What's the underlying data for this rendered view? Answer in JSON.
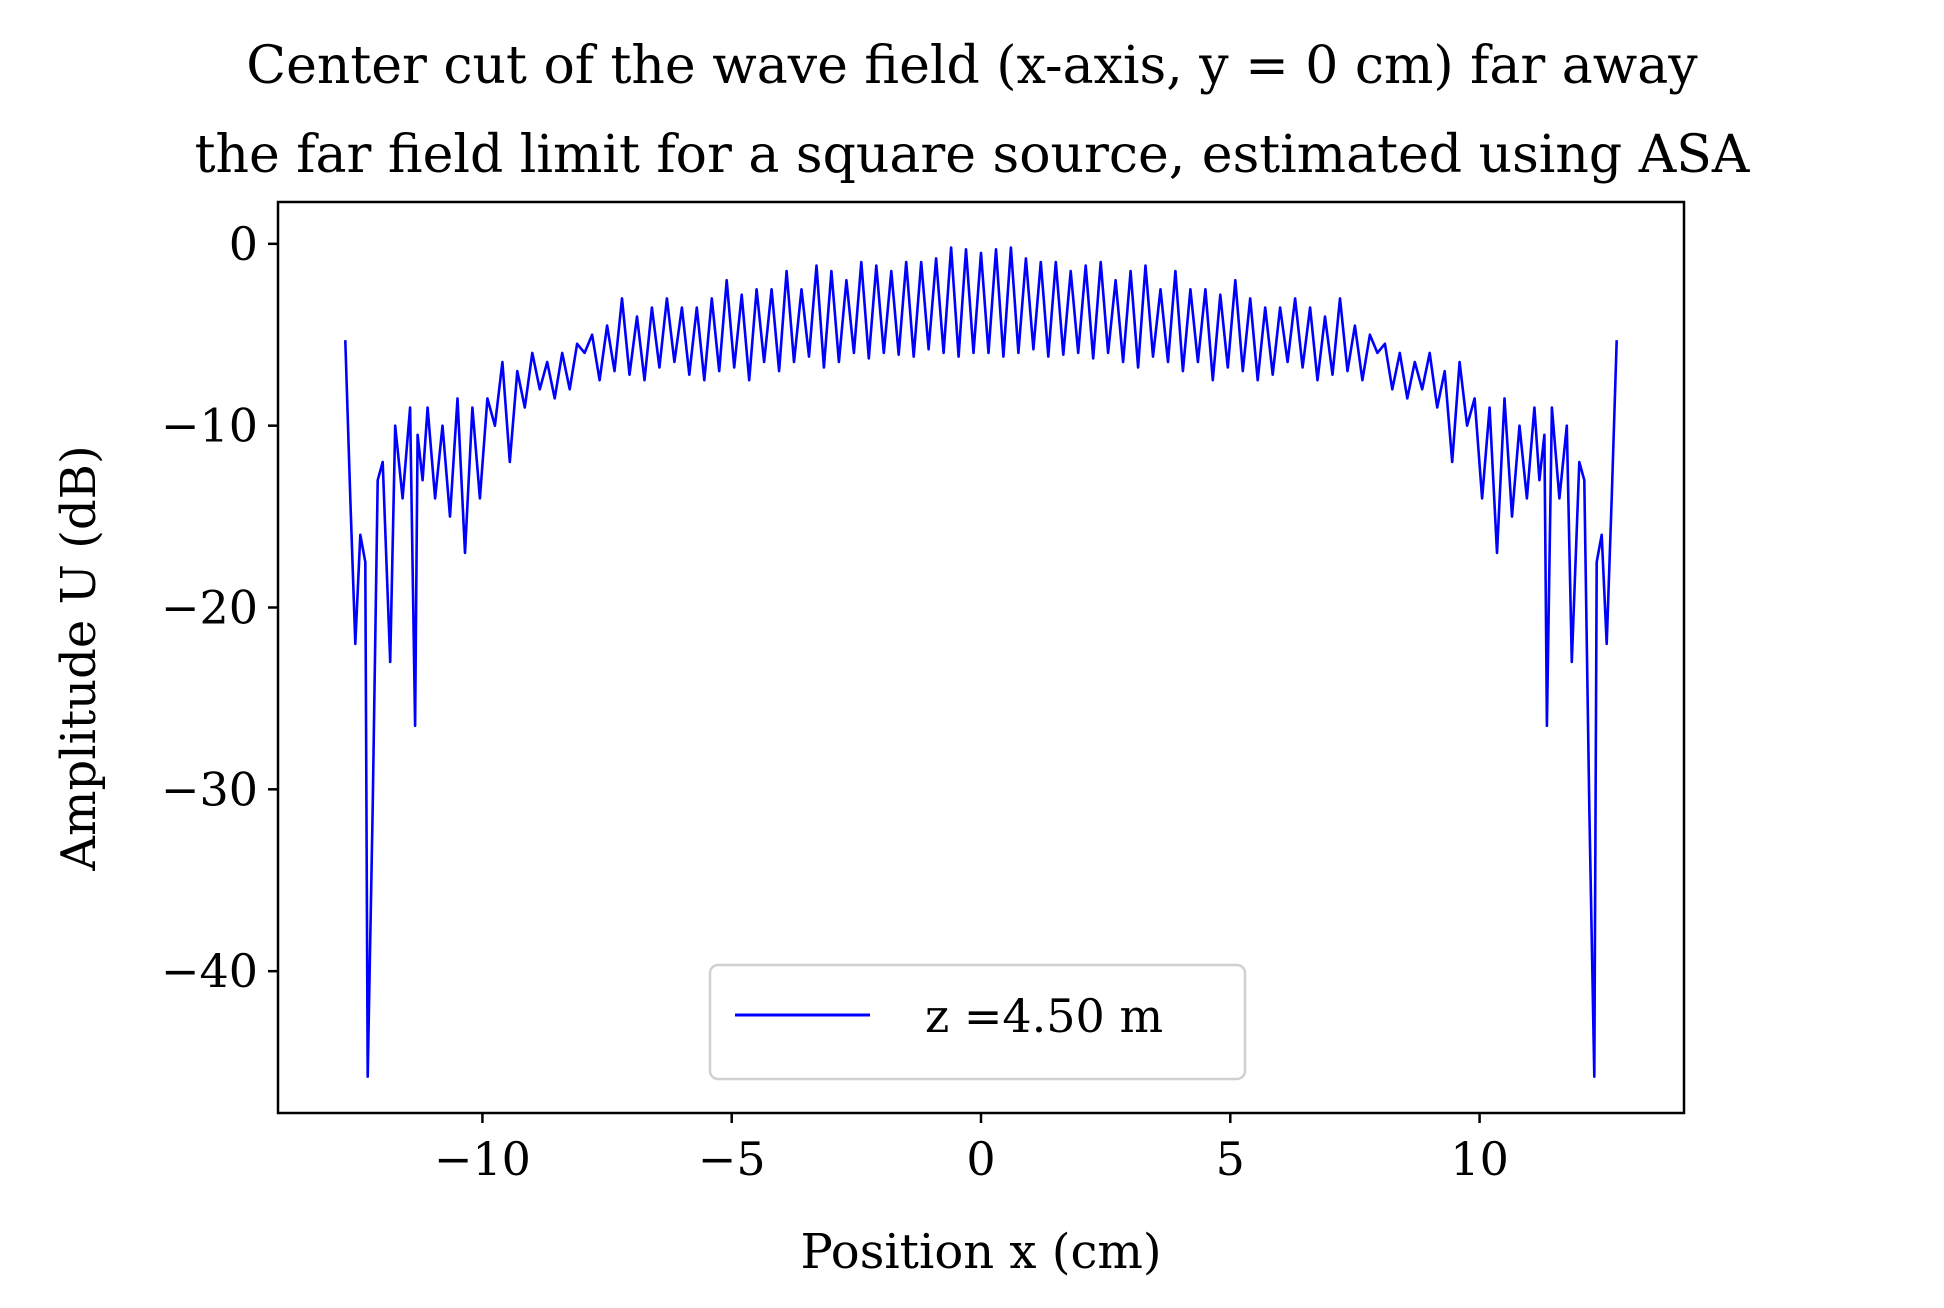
{
  "chart_data": {
    "type": "line",
    "title": [
      "Center cut of the wave field (x-axis, y = 0 cm) far away",
      "the far field limit for a square source, estimated using ASA"
    ],
    "xlabel": "Position x (cm)",
    "ylabel": "Amplitude U (dB)",
    "xlim": [
      -14.1,
      14.1
    ],
    "ylim": [
      -47.8,
      2.3
    ],
    "xticks": [
      -10,
      -5,
      0,
      5,
      10
    ],
    "xtick_labels": [
      "−10",
      "−5",
      "0",
      "5",
      "10"
    ],
    "yticks": [
      0,
      -10,
      -20,
      -30,
      -40
    ],
    "ytick_labels": [
      "0",
      "−10",
      "−20",
      "−30",
      "−40"
    ],
    "grid": false,
    "legend": {
      "position": "lower-center",
      "entries": [
        "z =4.50 m"
      ]
    },
    "series": [
      {
        "name": "z =4.50 m",
        "color": "#0000ff",
        "x": [
          0,
          0.15,
          0.3,
          0.45,
          0.6,
          0.75,
          0.9,
          1.05,
          1.2,
          1.35,
          1.5,
          1.65,
          1.8,
          1.95,
          2.1,
          2.25,
          2.4,
          2.55,
          2.7,
          2.85,
          3.0,
          3.15,
          3.3,
          3.45,
          3.6,
          3.75,
          3.9,
          4.05,
          4.2,
          4.35,
          4.5,
          4.65,
          4.8,
          4.95,
          5.1,
          5.25,
          5.4,
          5.55,
          5.7,
          5.85,
          6.0,
          6.15,
          6.3,
          6.45,
          6.6,
          6.75,
          6.9,
          7.05,
          7.2,
          7.35,
          7.5,
          7.65,
          7.8,
          7.95,
          8.1,
          8.25,
          8.4,
          8.55,
          8.7,
          8.85,
          9.0,
          9.15,
          9.3,
          9.45,
          9.6,
          9.75,
          9.9,
          10.05,
          10.2,
          10.35,
          10.5,
          10.65,
          10.8,
          10.95,
          11.1,
          11.2,
          11.3,
          11.35,
          11.45,
          11.6,
          11.75,
          11.85,
          12.0,
          12.1,
          12.2,
          12.3,
          12.35,
          12.45,
          12.55,
          12.65,
          12.75
        ],
        "y": [
          -0.5,
          -6.0,
          -0.3,
          -6.2,
          -0.2,
          -6.0,
          -0.8,
          -5.8,
          -1.0,
          -6.2,
          -1.0,
          -6.1,
          -1.5,
          -6.0,
          -1.2,
          -6.3,
          -1.0,
          -6.0,
          -2.0,
          -6.5,
          -1.5,
          -6.8,
          -1.2,
          -6.2,
          -2.5,
          -6.5,
          -1.5,
          -7.0,
          -2.5,
          -6.5,
          -2.5,
          -7.5,
          -2.8,
          -6.8,
          -2.0,
          -7.0,
          -3.0,
          -7.5,
          -3.5,
          -7.2,
          -3.5,
          -6.5,
          -3.0,
          -6.8,
          -3.5,
          -7.5,
          -4.0,
          -7.2,
          -3.0,
          -7.0,
          -4.5,
          -7.5,
          -5.0,
          -6.0,
          -5.5,
          -8.0,
          -6.0,
          -8.5,
          -6.5,
          -8.0,
          -6.0,
          -9.0,
          -7.0,
          -12.0,
          -6.5,
          -10.0,
          -8.5,
          -14.0,
          -9.0,
          -17.0,
          -8.5,
          -15.0,
          -10.0,
          -14.0,
          -9.0,
          -13.0,
          -10.5,
          -26.5,
          -9.0,
          -14.0,
          -10.0,
          -23.0,
          -12.0,
          -13.0,
          -31.0,
          -45.8,
          -17.5,
          -16.0,
          -22.0,
          -14.0,
          -5.3
        ]
      }
    ]
  }
}
